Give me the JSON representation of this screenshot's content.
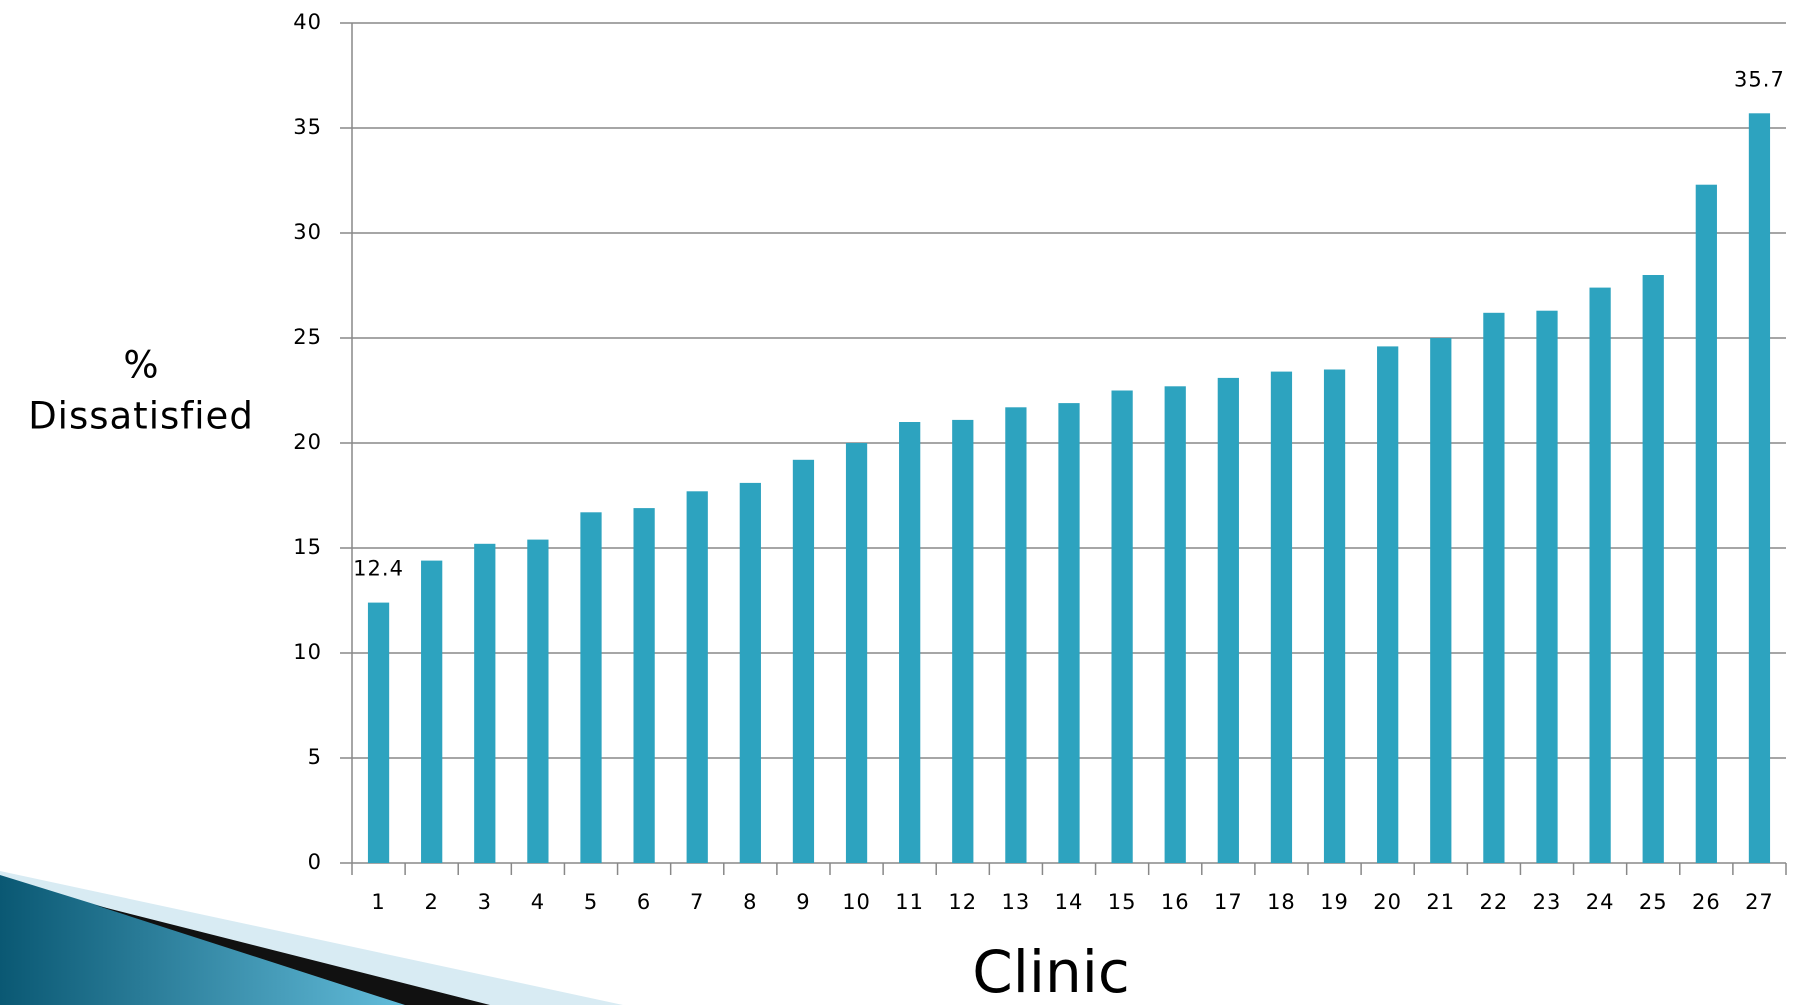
{
  "chart_data": {
    "type": "bar",
    "y_label": [
      "%",
      "Dissatisfied"
    ],
    "x_label": "Clinic",
    "categories": [
      "1",
      "2",
      "3",
      "4",
      "5",
      "6",
      "7",
      "8",
      "9",
      "10",
      "11",
      "12",
      "13",
      "14",
      "15",
      "16",
      "17",
      "18",
      "19",
      "20",
      "21",
      "22",
      "23",
      "24",
      "25",
      "26",
      "27"
    ],
    "values": [
      12.4,
      14.4,
      15.2,
      15.4,
      16.7,
      16.9,
      17.7,
      18.1,
      19.2,
      20.0,
      21.0,
      21.1,
      21.7,
      21.9,
      22.5,
      22.7,
      23.1,
      23.4,
      23.5,
      24.6,
      25.0,
      26.2,
      26.3,
      27.4,
      28.0,
      32.3,
      35.7
    ],
    "value_labels": [
      "12.4",
      null,
      null,
      null,
      null,
      null,
      null,
      null,
      null,
      null,
      null,
      null,
      null,
      null,
      null,
      null,
      null,
      null,
      null,
      null,
      null,
      null,
      null,
      null,
      null,
      null,
      "35.7"
    ],
    "color": "#2da3bf",
    "ylim": [
      0,
      40
    ],
    "yticks": [
      0,
      5,
      10,
      15,
      20,
      25,
      30,
      35,
      40
    ],
    "grid": true
  }
}
